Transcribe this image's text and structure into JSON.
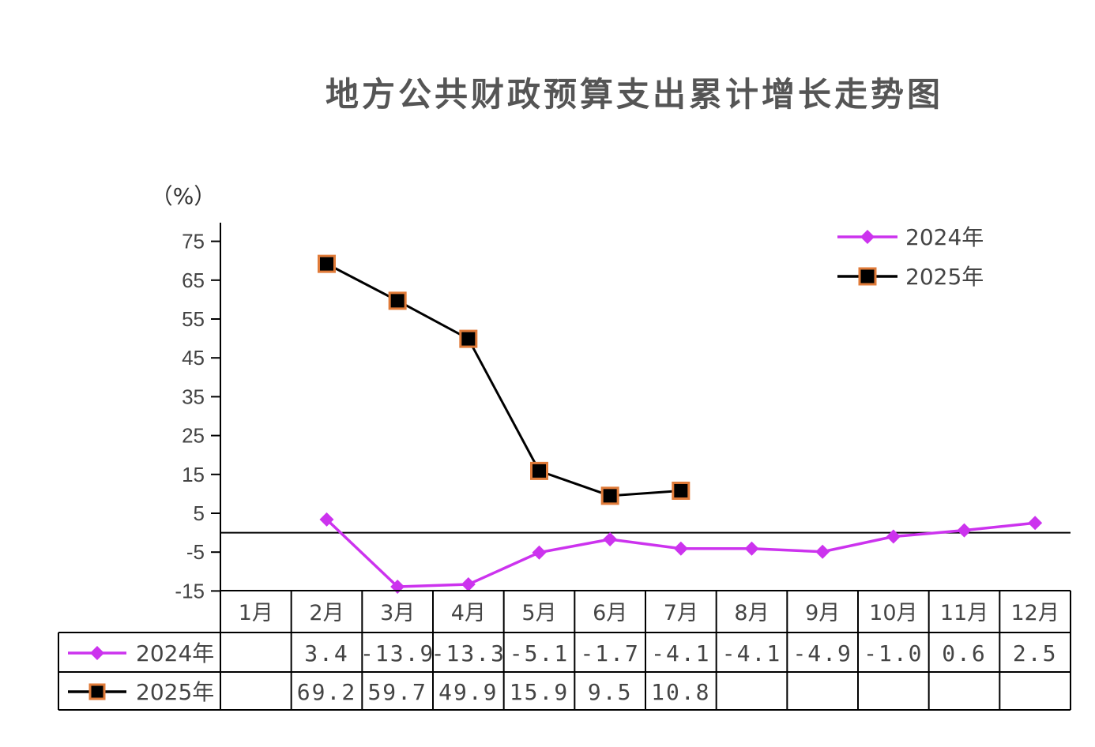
{
  "chart_data": {
    "type": "line",
    "title": "地方公共财政预算支出累计增长走势图",
    "unit_label": "（%）",
    "categories": [
      "1月",
      "2月",
      "3月",
      "4月",
      "5月",
      "6月",
      "7月",
      "8月",
      "9月",
      "10月",
      "11月",
      "12月"
    ],
    "ylim": [
      -15,
      80
    ],
    "yticks": [
      75,
      65,
      55,
      45,
      35,
      25,
      15,
      5,
      -5,
      -15
    ],
    "series": [
      {
        "name": "2024年",
        "color": "#cc33ee",
        "marker": "diamond",
        "values": [
          null,
          3.4,
          -13.9,
          -13.3,
          -5.1,
          -1.7,
          -4.1,
          -4.1,
          -4.9,
          -1.0,
          0.6,
          2.5
        ],
        "labels": [
          "",
          "3.4",
          "-13.9",
          "-13.3",
          "-5.1",
          "-1.7",
          "-4.1",
          "-4.1",
          "-4.9",
          "-1.0",
          "0.6",
          "2.5"
        ]
      },
      {
        "name": "2025年",
        "color": "#000000",
        "marker": "square",
        "marker_edge": "#e07b39",
        "values": [
          null,
          69.2,
          59.7,
          49.9,
          15.9,
          9.5,
          10.8,
          null,
          null,
          null,
          null,
          null
        ],
        "labels": [
          "",
          "69.2",
          "59.7",
          "49.9",
          "15.9",
          "9.5",
          "10.8",
          "",
          "",
          "",
          "",
          ""
        ]
      }
    ],
    "legend_position": "top-right",
    "grid": false
  }
}
